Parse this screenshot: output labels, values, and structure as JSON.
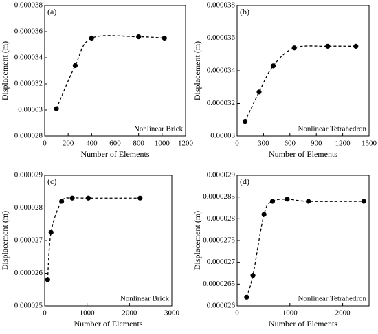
{
  "chart_data": [
    {
      "type": "line",
      "panel_label": "(a)",
      "annotation": "Nonlinear Brick",
      "x_label": "Number of Elements",
      "y_label": "Displacement (m)",
      "x": [
        100,
        260,
        400,
        800,
        1020
      ],
      "series": [
        {
          "name": "Nonlinear Brick",
          "color": "#000000",
          "values": [
            3.01e-05,
            3.34e-05,
            3.55e-05,
            3.56e-05,
            3.55e-05
          ]
        }
      ],
      "xlim": [
        0,
        1200
      ],
      "xticks": [
        0,
        200,
        400,
        600,
        800,
        1000,
        1200
      ],
      "ylim": [
        2.8e-05,
        3.8e-05
      ],
      "yticks": [
        2.8e-05,
        3e-05,
        3.2e-05,
        3.4e-05,
        3.6e-05,
        3.8e-05
      ]
    },
    {
      "type": "line",
      "panel_label": "(b)",
      "annotation": "Nonlinear Tetrahedron",
      "x_label": "Number of Elements",
      "y_label": "Displacement (m)",
      "x": [
        90,
        250,
        410,
        650,
        1030,
        1350
      ],
      "series": [
        {
          "name": "Nonlinear Tetrahedron",
          "color": "#000000",
          "values": [
            3.09e-05,
            3.27e-05,
            3.43e-05,
            3.54e-05,
            3.55e-05,
            3.55e-05
          ]
        }
      ],
      "xlim": [
        0,
        1500
      ],
      "xticks": [
        0,
        300,
        600,
        900,
        1200,
        1500
      ],
      "ylim": [
        3e-05,
        3.8e-05
      ],
      "yticks": [
        3e-05,
        3.2e-05,
        3.4e-05,
        3.6e-05,
        3.8e-05
      ]
    },
    {
      "type": "line",
      "panel_label": "(c)",
      "annotation": "Nonlinear Brick",
      "x_label": "Number of Elements",
      "y_label": "Displacement (m)",
      "x": [
        70,
        150,
        400,
        650,
        1030,
        2250
      ],
      "series": [
        {
          "name": "Nonlinear Brick",
          "color": "#000000",
          "values": [
            2.58e-05,
            2.725e-05,
            2.82e-05,
            2.83e-05,
            2.83e-05,
            2.83e-05
          ]
        }
      ],
      "xlim": [
        0,
        3000
      ],
      "xticks": [
        0,
        1000,
        2000,
        3000
      ],
      "ylim": [
        2.5e-05,
        2.9e-05
      ],
      "yticks": [
        2.5e-05,
        2.6e-05,
        2.7e-05,
        2.8e-05,
        2.9e-05
      ]
    },
    {
      "type": "line",
      "panel_label": "(d)",
      "annotation": "Nonlinear Tetrahedron",
      "x_label": "Number of Elements",
      "y_label": "Displacement (m)",
      "x": [
        180,
        300,
        510,
        670,
        950,
        1350,
        2400
      ],
      "series": [
        {
          "name": "Nonlinear Tetrahedron",
          "color": "#000000",
          "values": [
            2.62e-05,
            2.67e-05,
            2.81e-05,
            2.84e-05,
            2.845e-05,
            2.84e-05,
            2.84e-05
          ]
        }
      ],
      "xlim": [
        0,
        2500
      ],
      "xticks": [
        0,
        1000,
        2000
      ],
      "ylim": [
        2.6e-05,
        2.9e-05
      ],
      "yticks": [
        2.6e-05,
        2.65e-05,
        2.7e-05,
        2.75e-05,
        2.8e-05,
        2.85e-05,
        2.9e-05
      ]
    }
  ]
}
